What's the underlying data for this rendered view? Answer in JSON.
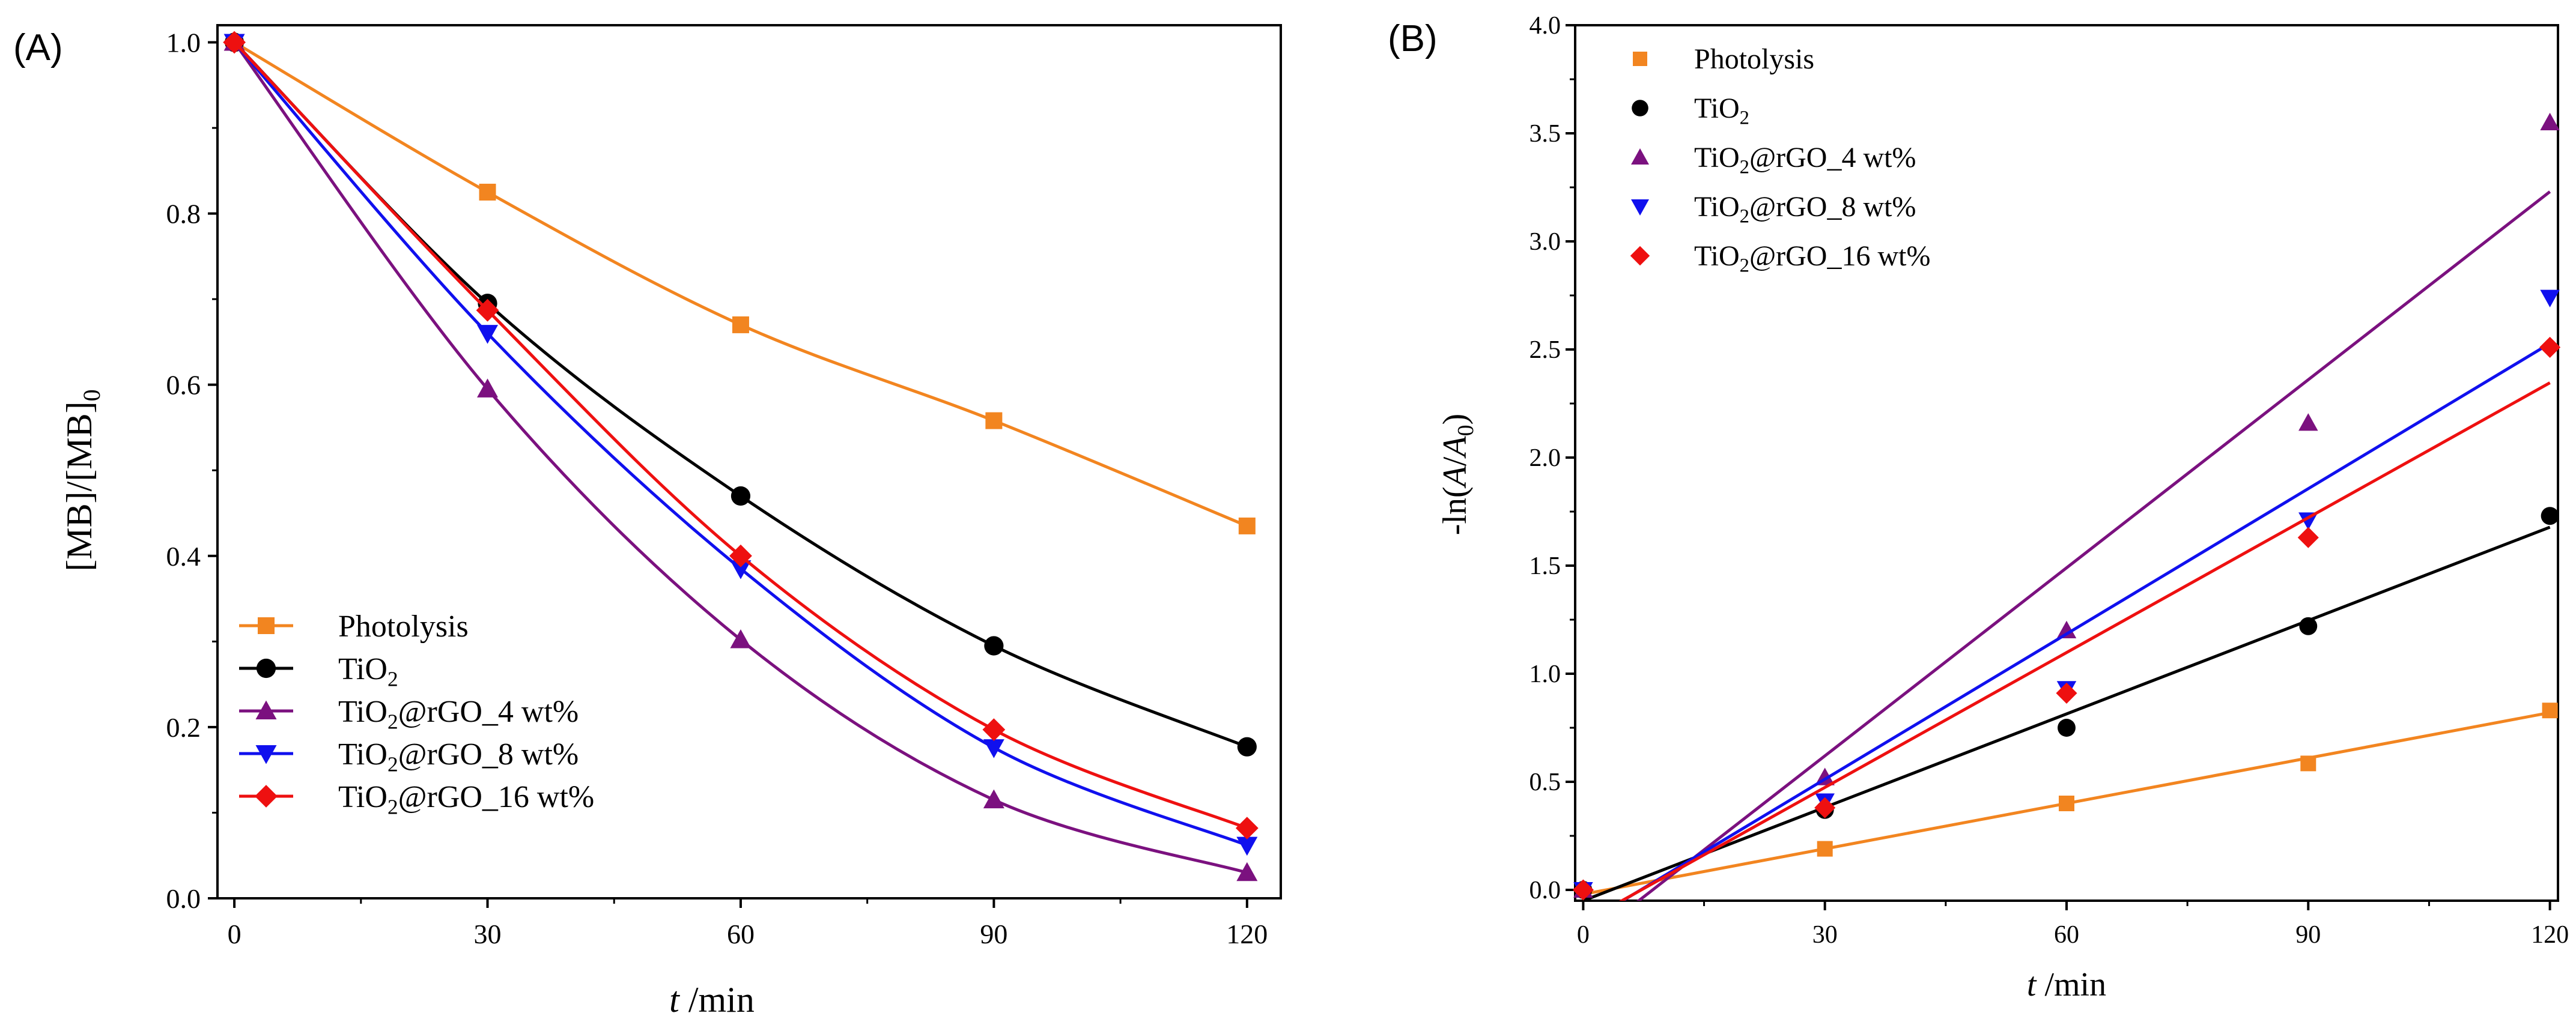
{
  "chart_data": [
    {
      "type": "line",
      "panel_label": "(A)",
      "xlabel_italic": "t",
      "xlabel_rest": " /min",
      "ylabel": "[MB]/[MB]",
      "ylabel_sub": "0",
      "xlim": [
        -2,
        124
      ],
      "ylim": [
        0,
        1.02
      ],
      "xticks": [
        0,
        30,
        60,
        90,
        120
      ],
      "yticks": [
        0.0,
        0.2,
        0.4,
        0.6,
        0.8,
        1.0
      ],
      "yticks_labels": [
        "0.0",
        "0.2",
        "0.4",
        "0.6",
        "0.8",
        "1.0"
      ],
      "legend_position": "bottom-left",
      "series": [
        {
          "name": "Photolysis",
          "label_main": "Photolysis",
          "label_sub": "",
          "label_tail": "",
          "color": "#f28520",
          "marker": "square",
          "x": [
            0,
            30,
            60,
            90,
            120
          ],
          "values": [
            1.0,
            0.825,
            0.67,
            0.558,
            0.435
          ]
        },
        {
          "name": "TiO2",
          "label_main": "TiO",
          "label_sub": "2",
          "label_tail": "",
          "color": "#000000",
          "marker": "circle",
          "x": [
            0,
            30,
            60,
            90,
            120
          ],
          "values": [
            1.0,
            0.695,
            0.47,
            0.295,
            0.177
          ]
        },
        {
          "name": "TiO2@rGO_4 wt%",
          "label_main": "TiO",
          "label_sub": "2",
          "label_tail": "@rGO_4 wt%",
          "color": "#7b117f",
          "marker": "triangle-up",
          "x": [
            0,
            30,
            60,
            90,
            120
          ],
          "values": [
            1.0,
            0.595,
            0.302,
            0.115,
            0.03
          ]
        },
        {
          "name": "TiO2@rGO_8 wt%",
          "label_main": "TiO",
          "label_sub": "2",
          "label_tail": "@rGO_8 wt%",
          "color": "#1010ee",
          "marker": "triangle-down",
          "x": [
            0,
            30,
            60,
            90,
            120
          ],
          "values": [
            1.0,
            0.66,
            0.385,
            0.176,
            0.062
          ]
        },
        {
          "name": "TiO2@rGO_16 wt%",
          "label_main": "TiO",
          "label_sub": "2",
          "label_tail": "@rGO_16 wt%",
          "color": "#ee1010",
          "marker": "diamond",
          "x": [
            0,
            30,
            60,
            90,
            120
          ],
          "values": [
            1.0,
            0.687,
            0.4,
            0.197,
            0.082
          ]
        }
      ]
    },
    {
      "type": "scatter",
      "panel_label": "(B)",
      "xlabel_italic": "t",
      "xlabel_rest": " /min",
      "ylabel_pre": "-ln(",
      "ylabel_italic": "A",
      "ylabel_mid": "/",
      "ylabel_italic2": "A",
      "ylabel_sub": "0",
      "ylabel_post": ")",
      "xlim": [
        -1,
        121
      ],
      "ylim": [
        -0.05,
        4.0
      ],
      "xticks": [
        0,
        30,
        60,
        90,
        120
      ],
      "yticks": [
        0.0,
        0.5,
        1.0,
        1.5,
        2.0,
        2.5,
        3.0,
        3.5,
        4.0
      ],
      "yticks_labels": [
        "0.0",
        "0.5",
        "1.0",
        "1.5",
        "2.0",
        "2.5",
        "3.0",
        "3.5",
        "4.0"
      ],
      "legend_position": "top-left",
      "series": [
        {
          "name": "Photolysis",
          "label_main": "Photolysis",
          "label_sub": "",
          "label_tail": "",
          "color": "#f28520",
          "marker": "square",
          "x": [
            0,
            30,
            60,
            90,
            120
          ],
          "values": [
            0.0,
            0.19,
            0.4,
            0.585,
            0.83
          ],
          "fit": [
            -0.02,
            0.007
          ]
        },
        {
          "name": "TiO2",
          "label_main": "TiO",
          "label_sub": "2",
          "label_tail": "",
          "color": "#000000",
          "marker": "circle",
          "x": [
            0,
            30,
            60,
            90,
            120
          ],
          "values": [
            0.0,
            0.37,
            0.75,
            1.22,
            1.73
          ],
          "fit": [
            -0.05,
            0.0144
          ]
        },
        {
          "name": "TiO2@rGO_4 wt%",
          "label_main": "TiO",
          "label_sub": "2",
          "label_tail": "@rGO_4 wt%",
          "color": "#7b117f",
          "marker": "triangle-up",
          "x": [
            0,
            30,
            60,
            90,
            120
          ],
          "values": [
            0.0,
            0.52,
            1.2,
            2.16,
            3.55
          ],
          "fit": [
            -0.25,
            0.029
          ]
        },
        {
          "name": "TiO2@rGO_8 wt%",
          "label_main": "TiO",
          "label_sub": "2",
          "label_tail": "@rGO_8 wt%",
          "color": "#1010ee",
          "marker": "triangle-down",
          "x": [
            0,
            30,
            60,
            90,
            120
          ],
          "values": [
            0.0,
            0.41,
            0.93,
            1.71,
            2.74
          ],
          "fit": [
            -0.16,
            0.0224
          ]
        },
        {
          "name": "TiO2@rGO_16 wt%",
          "label_main": "TiO",
          "label_sub": "2",
          "label_tail": "@rGO_16 wt%",
          "color": "#ee1010",
          "marker": "diamond",
          "x": [
            0,
            30,
            60,
            90,
            120
          ],
          "values": [
            0.0,
            0.38,
            0.91,
            1.63,
            2.51
          ],
          "fit": [
            -0.15,
            0.0208
          ]
        }
      ]
    }
  ]
}
